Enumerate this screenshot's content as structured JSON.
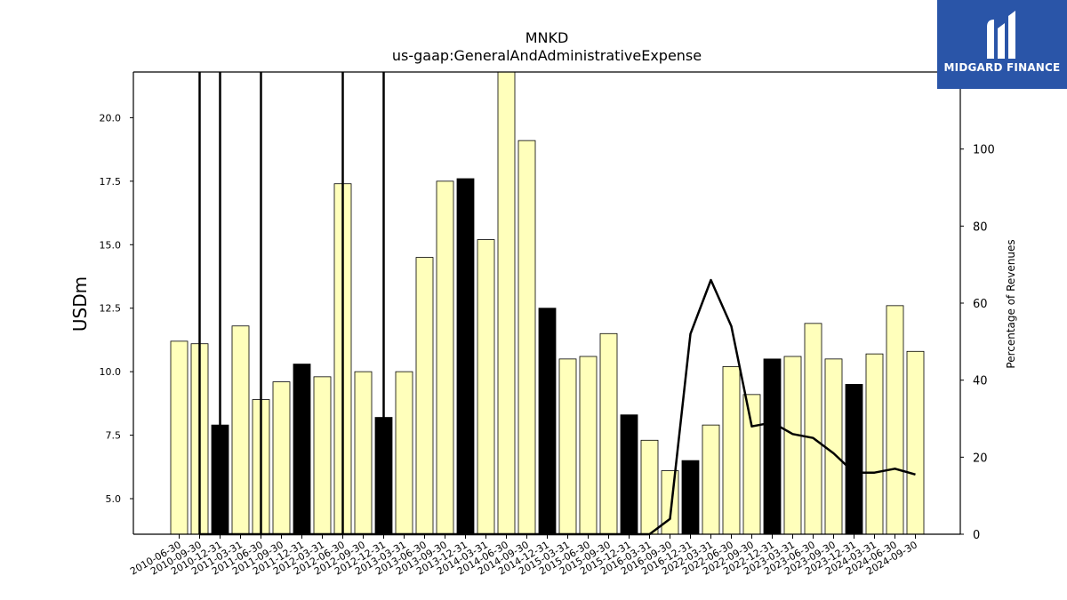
{
  "chart_data": {
    "type": "bar",
    "title": "MNKD",
    "subtitle": "us-gaap:GeneralAndAdministrativeExpense",
    "ylabel": "USDm",
    "ylabel_right": "Percentage of Revenues",
    "ylim": [
      3.6,
      21.8
    ],
    "ylim_right": [
      0,
      120
    ],
    "yticks": [
      "5.0",
      "7.5",
      "10.0",
      "12.5",
      "15.0",
      "17.5",
      "20.0"
    ],
    "yticks_right": [
      "0",
      "20",
      "40",
      "60",
      "80",
      "100"
    ],
    "categories": [
      "2010-06-30",
      "2010-09-30",
      "2010-12-31",
      "2011-03-31",
      "2011-06-30",
      "2011-09-30",
      "2011-12-31",
      "2012-03-31",
      "2012-06-30",
      "2012-09-30",
      "2012-12-31",
      "2013-03-31",
      "2013-06-30",
      "2013-09-30",
      "2013-12-31",
      "2014-03-31",
      "2014-06-30",
      "2014-09-30",
      "2014-12-31",
      "2015-03-31",
      "2015-06-30",
      "2015-09-30",
      "2015-12-31",
      "2016-03-31",
      "2016-09-30",
      "2016-12-31",
      "2022-03-31",
      "2022-06-30",
      "2022-09-30",
      "2022-12-31",
      "2023-03-31",
      "2023-06-30",
      "2023-09-30",
      "2023-12-31",
      "2024-03-31",
      "2024-06-30",
      "2024-09-30"
    ],
    "series": [
      {
        "type": "bar",
        "values": [
          11.2,
          11.1,
          7.9,
          11.8,
          8.9,
          9.6,
          10.3,
          9.8,
          17.4,
          10.0,
          8.2,
          10.0,
          14.5,
          17.5,
          17.6,
          15.2,
          21.8,
          19.1,
          12.5,
          10.5,
          10.6,
          11.5,
          8.3,
          7.3,
          6.1,
          6.5,
          7.9,
          10.2,
          9.1,
          10.5,
          10.6,
          11.9,
          10.5,
          9.5,
          10.7,
          12.6,
          10.8
        ],
        "highlight": [
          false,
          false,
          true,
          false,
          false,
          false,
          true,
          false,
          false,
          false,
          true,
          false,
          false,
          false,
          true,
          false,
          false,
          false,
          true,
          false,
          false,
          false,
          true,
          false,
          false,
          true,
          false,
          false,
          false,
          true,
          false,
          false,
          false,
          true,
          false,
          false,
          false
        ],
        "color": "#ffffbb",
        "highlight_color": "#000000"
      },
      {
        "type": "line",
        "axis": "right",
        "values": [
          null,
          null,
          null,
          null,
          null,
          null,
          null,
          null,
          null,
          null,
          null,
          0,
          0,
          0,
          0,
          0,
          0,
          0,
          0,
          0,
          0,
          0,
          0,
          0,
          4,
          52,
          66,
          54,
          28,
          29,
          26,
          25,
          21,
          16,
          16,
          17,
          15.5
        ],
        "spikes_at": [
          1,
          2,
          4,
          8,
          10
        ],
        "color": "#000000"
      }
    ]
  },
  "logo": {
    "text": "MIDGARD FINANCE",
    "color": "#2a55a8"
  }
}
